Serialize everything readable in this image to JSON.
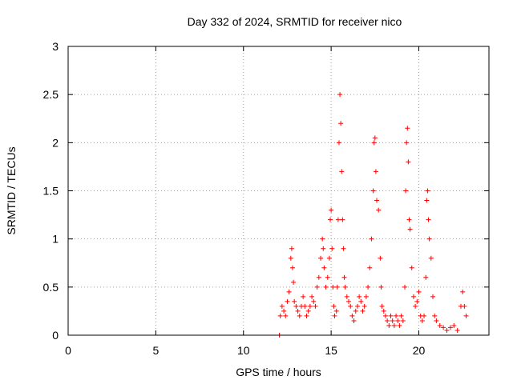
{
  "chart_data": {
    "type": "scatter",
    "title": "Day 332 of 2024, SRMTID for receiver nico",
    "xlabel": "GPS time / hours",
    "ylabel": "SRMTID / TECUs",
    "xlim": [
      0,
      24
    ],
    "ylim": [
      0,
      3
    ],
    "xticks": [
      0,
      5,
      10,
      15,
      20
    ],
    "xtick_labels": [
      "0",
      "5",
      "10",
      "15",
      "20"
    ],
    "yticks": [
      0,
      0.5,
      1,
      1.5,
      2,
      2.5,
      3
    ],
    "ytick_labels": [
      "0",
      "0.5",
      "1",
      "1.5",
      "2",
      "2.5",
      "3"
    ],
    "grid": true,
    "marker": "+",
    "color": "#ff0000",
    "series": [
      {
        "name": "SRMTID",
        "points": [
          [
            12.05,
            0.0
          ],
          [
            12.1,
            0.2
          ],
          [
            12.2,
            0.3
          ],
          [
            12.3,
            0.25
          ],
          [
            12.4,
            0.2
          ],
          [
            12.5,
            0.35
          ],
          [
            12.6,
            0.45
          ],
          [
            12.7,
            0.8
          ],
          [
            12.75,
            0.9
          ],
          [
            12.8,
            0.7
          ],
          [
            12.85,
            0.55
          ],
          [
            12.9,
            0.35
          ],
          [
            13.0,
            0.3
          ],
          [
            13.1,
            0.25
          ],
          [
            13.2,
            0.2
          ],
          [
            13.3,
            0.3
          ],
          [
            13.4,
            0.4
          ],
          [
            13.5,
            0.3
          ],
          [
            13.6,
            0.2
          ],
          [
            13.7,
            0.25
          ],
          [
            13.8,
            0.3
          ],
          [
            13.9,
            0.4
          ],
          [
            14.0,
            0.35
          ],
          [
            14.1,
            0.3
          ],
          [
            14.2,
            0.5
          ],
          [
            14.3,
            0.6
          ],
          [
            14.4,
            0.8
          ],
          [
            14.5,
            1.0
          ],
          [
            14.55,
            0.9
          ],
          [
            14.6,
            0.7
          ],
          [
            14.7,
            0.5
          ],
          [
            14.8,
            0.6
          ],
          [
            14.9,
            0.8
          ],
          [
            14.95,
            1.2
          ],
          [
            15.0,
            1.3
          ],
          [
            15.05,
            0.9
          ],
          [
            15.1,
            0.5
          ],
          [
            15.15,
            0.3
          ],
          [
            15.2,
            0.2
          ],
          [
            15.3,
            0.25
          ],
          [
            15.35,
            0.5
          ],
          [
            15.4,
            1.2
          ],
          [
            15.45,
            2.0
          ],
          [
            15.5,
            2.5
          ],
          [
            15.55,
            2.2
          ],
          [
            15.6,
            1.7
          ],
          [
            15.65,
            1.2
          ],
          [
            15.7,
            0.9
          ],
          [
            15.75,
            0.6
          ],
          [
            15.8,
            0.5
          ],
          [
            15.9,
            0.4
          ],
          [
            16.0,
            0.35
          ],
          [
            16.1,
            0.3
          ],
          [
            16.2,
            0.2
          ],
          [
            16.3,
            0.15
          ],
          [
            16.4,
            0.25
          ],
          [
            16.5,
            0.3
          ],
          [
            16.6,
            0.4
          ],
          [
            16.7,
            0.35
          ],
          [
            16.8,
            0.25
          ],
          [
            16.9,
            0.3
          ],
          [
            17.0,
            0.4
          ],
          [
            17.1,
            0.5
          ],
          [
            17.2,
            0.7
          ],
          [
            17.3,
            1.0
          ],
          [
            17.4,
            1.5
          ],
          [
            17.45,
            2.0
          ],
          [
            17.5,
            2.05
          ],
          [
            17.55,
            1.7
          ],
          [
            17.6,
            1.4
          ],
          [
            17.7,
            1.3
          ],
          [
            17.8,
            0.8
          ],
          [
            17.85,
            0.5
          ],
          [
            17.9,
            0.3
          ],
          [
            18.0,
            0.25
          ],
          [
            18.1,
            0.2
          ],
          [
            18.2,
            0.15
          ],
          [
            18.3,
            0.1
          ],
          [
            18.4,
            0.2
          ],
          [
            18.5,
            0.15
          ],
          [
            18.6,
            0.1
          ],
          [
            18.7,
            0.2
          ],
          [
            18.8,
            0.15
          ],
          [
            18.9,
            0.1
          ],
          [
            19.0,
            0.2
          ],
          [
            19.1,
            0.15
          ],
          [
            19.2,
            0.5
          ],
          [
            19.25,
            1.5
          ],
          [
            19.3,
            2.0
          ],
          [
            19.35,
            2.15
          ],
          [
            19.4,
            1.8
          ],
          [
            19.45,
            1.2
          ],
          [
            19.5,
            1.1
          ],
          [
            19.6,
            0.7
          ],
          [
            19.7,
            0.4
          ],
          [
            19.8,
            0.3
          ],
          [
            19.9,
            0.35
          ],
          [
            20.0,
            0.45
          ],
          [
            20.1,
            0.2
          ],
          [
            20.2,
            0.15
          ],
          [
            20.3,
            0.2
          ],
          [
            20.4,
            0.6
          ],
          [
            20.45,
            1.4
          ],
          [
            20.5,
            1.5
          ],
          [
            20.55,
            1.2
          ],
          [
            20.6,
            1.0
          ],
          [
            20.7,
            0.8
          ],
          [
            20.8,
            0.4
          ],
          [
            20.9,
            0.2
          ],
          [
            21.0,
            0.15
          ],
          [
            21.2,
            0.1
          ],
          [
            21.4,
            0.08
          ],
          [
            21.6,
            0.05
          ],
          [
            21.8,
            0.08
          ],
          [
            22.0,
            0.1
          ],
          [
            22.2,
            0.05
          ],
          [
            22.4,
            0.3
          ],
          [
            22.5,
            0.45
          ],
          [
            22.6,
            0.3
          ],
          [
            22.7,
            0.2
          ]
        ]
      }
    ]
  }
}
